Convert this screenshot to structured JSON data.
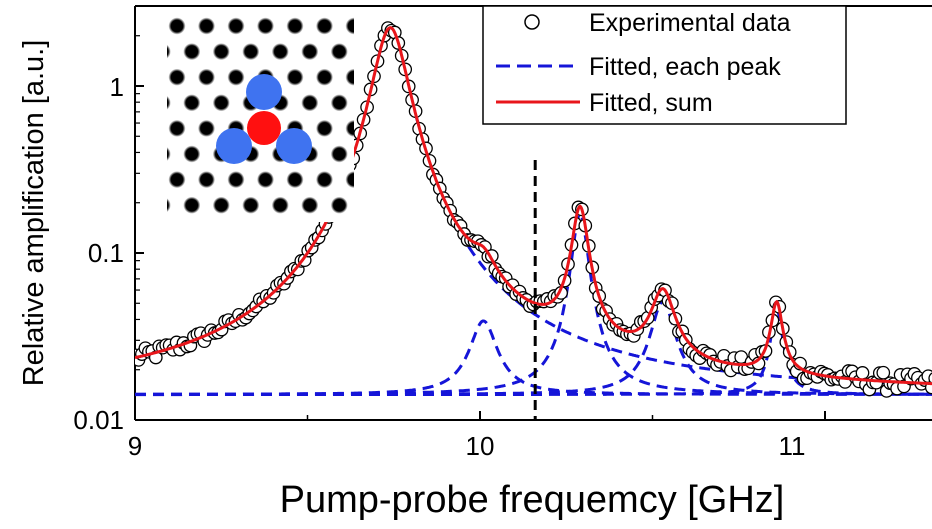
{
  "chart_data": {
    "type": "scatter",
    "xlabel": "Pump-probe frequemcy [GHz]",
    "ylabel": "Relative amplification [a.u.]",
    "xlim": [
      9.0,
      11.45
    ],
    "ylim": [
      0.01,
      3.0
    ],
    "yscale": "log",
    "xticks": [
      "9",
      "10",
      "11"
    ],
    "xtick_values": [
      9,
      10,
      11
    ],
    "yticks": [
      "0.01",
      "0.1",
      "1"
    ],
    "ytick_values": [
      0.01,
      0.1,
      1
    ],
    "grid": false,
    "legend_position": "top-right",
    "vertical_marker_x": 10.16,
    "baseline": 0.0142,
    "peaks": [
      {
        "center": 9.74,
        "amplitude": 2.22,
        "width": 0.048
      },
      {
        "center": 10.01,
        "amplitude": 0.025,
        "width": 0.04
      },
      {
        "center": 10.29,
        "amplitude": 0.158,
        "width": 0.024
      },
      {
        "center": 10.53,
        "amplitude": 0.037,
        "width": 0.036
      },
      {
        "center": 10.86,
        "amplitude": 0.032,
        "width": 0.018
      }
    ],
    "series": [
      {
        "name": "Experimental data",
        "style": "open-circle",
        "color": "#000000",
        "x_range": [
          9.0,
          11.45
        ],
        "point_count": 245,
        "noise": 0.15
      },
      {
        "name": "Fitted, each peak",
        "style": "dashed-line",
        "color": "#1515d8"
      },
      {
        "name": "Fitted, sum",
        "style": "solid-line",
        "color": "#e8161b"
      }
    ],
    "inset": {
      "description": "lattice of black dots with one red center site and three blue neighbouring sites",
      "grid_color": "#000000",
      "center_color": "#ff1010",
      "neighbor_color": "#3f73f0"
    }
  }
}
